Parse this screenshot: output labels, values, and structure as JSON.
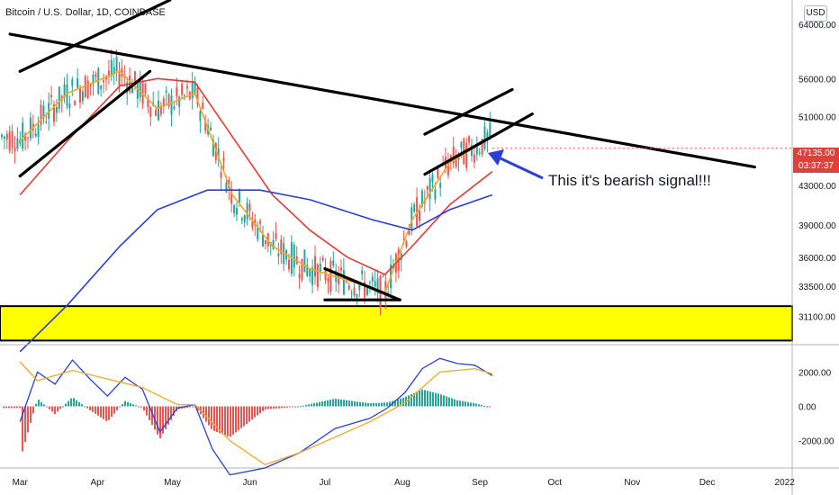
{
  "header": {
    "symbol_title": "Bitcoin / U.S. Dollar, 1D, COINBASE",
    "currency": "USD"
  },
  "annotation": {
    "text": "This it's bearish signal!!!"
  },
  "last_price": {
    "price": "47135.00",
    "countdown": "03:37:37",
    "color": "#e0403a"
  },
  "colors": {
    "up_candle": "#26a69a",
    "down_candle": "#ef5350",
    "ma_fast": "#f0a826",
    "ma_mid": "#e53935",
    "ma_slow": "#2b3fd8",
    "support_zone": "#ffff00",
    "trendline": "#000000",
    "arrow": "#2b3fd8",
    "macd_line": "#2b3fd8",
    "signal_line": "#f0a826",
    "hist_up": "#26a69a",
    "hist_down": "#ef5350"
  },
  "chart_data": [
    {
      "type": "candlestick",
      "title": "Bitcoin / U.S. Dollar, 1D, COINBASE",
      "price_scale": "log",
      "y_ticks": [
        "64000.00",
        "56000.00",
        "51000.00",
        "43000.00",
        "39000.00",
        "36000.00",
        "33500.00",
        "31100.00"
      ],
      "x_ticks": [
        "Mar",
        "Apr",
        "May",
        "Jun",
        "Jul",
        "Aug",
        "Sep",
        "Oct",
        "Nov",
        "Dec",
        "2022"
      ],
      "ylim": [
        29000,
        68000
      ],
      "last_price": 47135,
      "support_zone": [
        29300,
        31900
      ],
      "moving_averages": [
        {
          "color": "#f0a826",
          "points": [
            [
              "2021-03-01",
              48000
            ],
            [
              "2021-03-20",
              54000
            ],
            [
              "2021-04-10",
              57000
            ],
            [
              "2021-04-25",
              52000
            ],
            [
              "2021-05-10",
              54000
            ],
            [
              "2021-05-25",
              42000
            ],
            [
              "2021-06-10",
              37000
            ],
            [
              "2021-06-25",
              35000
            ],
            [
              "2021-07-10",
              34000
            ],
            [
              "2021-07-25",
              33000
            ],
            [
              "2021-08-05",
              39500
            ],
            [
              "2021-08-20",
              45500
            ],
            [
              "2021-09-06",
              48500
            ]
          ]
        },
        {
          "color": "#e53935",
          "points": [
            [
              "2021-03-01",
              42000
            ],
            [
              "2021-03-20",
              48000
            ],
            [
              "2021-04-10",
              55000
            ],
            [
              "2021-04-25",
              56000
            ],
            [
              "2021-05-10",
              55500
            ],
            [
              "2021-05-25",
              48500
            ],
            [
              "2021-06-10",
              42000
            ],
            [
              "2021-06-25",
              38500
            ],
            [
              "2021-07-10",
              36000
            ],
            [
              "2021-07-25",
              34500
            ],
            [
              "2021-08-05",
              37000
            ],
            [
              "2021-08-20",
              41000
            ],
            [
              "2021-09-06",
              44500
            ]
          ]
        },
        {
          "color": "#2b3fd8",
          "points": [
            [
              "2021-03-01",
              28500
            ],
            [
              "2021-03-20",
              32000
            ],
            [
              "2021-04-10",
              37000
            ],
            [
              "2021-04-25",
              40500
            ],
            [
              "2021-05-15",
              42500
            ],
            [
              "2021-06-05",
              42500
            ],
            [
              "2021-06-25",
              41500
            ],
            [
              "2021-07-20",
              39500
            ],
            [
              "2021-08-05",
              38500
            ],
            [
              "2021-08-20",
              40500
            ],
            [
              "2021-09-06",
              42000
            ]
          ]
        }
      ],
      "trendlines": [
        {
          "name": "long-term resistance",
          "points": [
            [
              "2021-02-25",
              62500
            ],
            [
              "2021-12-20",
              45000
            ]
          ]
        },
        {
          "name": "lower wedge support",
          "points": [
            [
              "2021-03-01",
              44000
            ],
            [
              "2021-04-22",
              57000
            ]
          ]
        },
        {
          "name": "upper wedge resistance",
          "points": [
            [
              "2021-03-01",
              57000
            ],
            [
              "2021-04-30",
              68000
            ]
          ]
        },
        {
          "name": "rising channel top",
          "points": [
            [
              "2021-08-10",
              48800
            ],
            [
              "2021-09-14",
              54500
            ]
          ]
        },
        {
          "name": "rising channel bottom",
          "points": [
            [
              "2021-08-10",
              44200
            ],
            [
              "2021-09-22",
              51300
            ]
          ]
        },
        {
          "name": "triangle top",
          "points": [
            [
              "2021-07-01",
              35000
            ],
            [
              "2021-07-31",
              32400
            ]
          ]
        },
        {
          "name": "triangle base",
          "points": [
            [
              "2021-07-01",
              32400
            ],
            [
              "2021-07-31",
              32400
            ]
          ]
        }
      ]
    },
    {
      "type": "line",
      "title": "MACD",
      "y_ticks": [
        "2000.00",
        "0.00",
        "-2000.00"
      ],
      "ylim": [
        -3600,
        3600
      ],
      "series": [
        {
          "color": "#2b3fd8",
          "points": [
            [
              "2021-03-01",
              -900
            ],
            [
              "2021-03-08",
              2000
            ],
            [
              "2021-03-15",
              1300
            ],
            [
              "2021-03-22",
              2700
            ],
            [
              "2021-03-29",
              1600
            ],
            [
              "2021-04-05",
              600
            ],
            [
              "2021-04-12",
              1700
            ],
            [
              "2021-04-19",
              1000
            ],
            [
              "2021-04-26",
              -1500
            ],
            [
              "2021-05-03",
              -100
            ],
            [
              "2021-05-10",
              100
            ],
            [
              "2021-05-17",
              -2500
            ],
            [
              "2021-05-24",
              -4000
            ],
            [
              "2021-06-07",
              -3600
            ],
            [
              "2021-06-21",
              -2700
            ],
            [
              "2021-07-05",
              -1300
            ],
            [
              "2021-07-19",
              -700
            ],
            [
              "2021-07-26",
              -100
            ],
            [
              "2021-08-02",
              800
            ],
            [
              "2021-08-09",
              2200
            ],
            [
              "2021-08-16",
              2800
            ],
            [
              "2021-08-23",
              2500
            ],
            [
              "2021-08-30",
              2400
            ],
            [
              "2021-09-06",
              1800
            ]
          ]
        },
        {
          "color": "#f0a826",
          "points": [
            [
              "2021-03-01",
              2600
            ],
            [
              "2021-03-08",
              1500
            ],
            [
              "2021-03-22",
              2100
            ],
            [
              "2021-04-05",
              1600
            ],
            [
              "2021-04-19",
              1100
            ],
            [
              "2021-05-03",
              100
            ],
            [
              "2021-05-10",
              100
            ],
            [
              "2021-05-24",
              -2000
            ],
            [
              "2021-06-07",
              -3400
            ],
            [
              "2021-06-21",
              -2700
            ],
            [
              "2021-07-05",
              -1800
            ],
            [
              "2021-07-19",
              -900
            ],
            [
              "2021-08-02",
              200
            ],
            [
              "2021-08-16",
              2000
            ],
            [
              "2021-08-30",
              2200
            ],
            [
              "2021-09-06",
              1900
            ]
          ]
        }
      ]
    }
  ]
}
